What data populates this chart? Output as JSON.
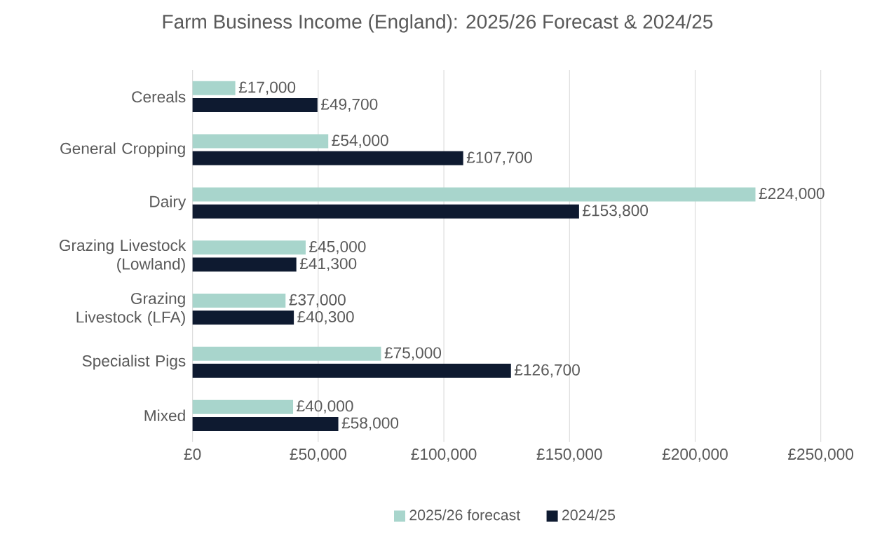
{
  "chart_data": {
    "type": "bar",
    "orientation": "horizontal",
    "title": "Farm Business Income (England): 2025/26 Forecast & 2024/25",
    "categories": [
      "Cereals",
      "General Cropping",
      "Dairy",
      "Grazing Livestock (Lowland)",
      "Grazing Livestock (LFA)",
      "Specialist Pigs",
      "Mixed"
    ],
    "series": [
      {
        "name": "2025/26 forecast",
        "color": "#a8d5cc",
        "values": [
          17000,
          54000,
          224000,
          45000,
          37000,
          75000,
          40000
        ],
        "value_labels": [
          "£17,000",
          "£54,000",
          "£224,000",
          "£45,000",
          "£37,000",
          "£75,000",
          "£40,000"
        ]
      },
      {
        "name": "2024/25",
        "color": "#0e1a30",
        "values": [
          49700,
          107700,
          153800,
          41300,
          40300,
          126700,
          58000
        ],
        "value_labels": [
          "£49,700",
          "£107,700",
          "£153,800",
          "£41,300",
          "£40,300",
          "£126,700",
          "£58,000"
        ]
      }
    ],
    "xlim": [
      0,
      250000
    ],
    "xticks": [
      {
        "value": 0,
        "label": "£0"
      },
      {
        "value": 50000,
        "label": "£50,000"
      },
      {
        "value": 100000,
        "label": "£100,000"
      },
      {
        "value": 150000,
        "label": "£150,000"
      },
      {
        "value": 200000,
        "label": "£200,000"
      },
      {
        "value": 250000,
        "label": "£250,000"
      }
    ],
    "grid": "x",
    "legend": "bottom"
  }
}
